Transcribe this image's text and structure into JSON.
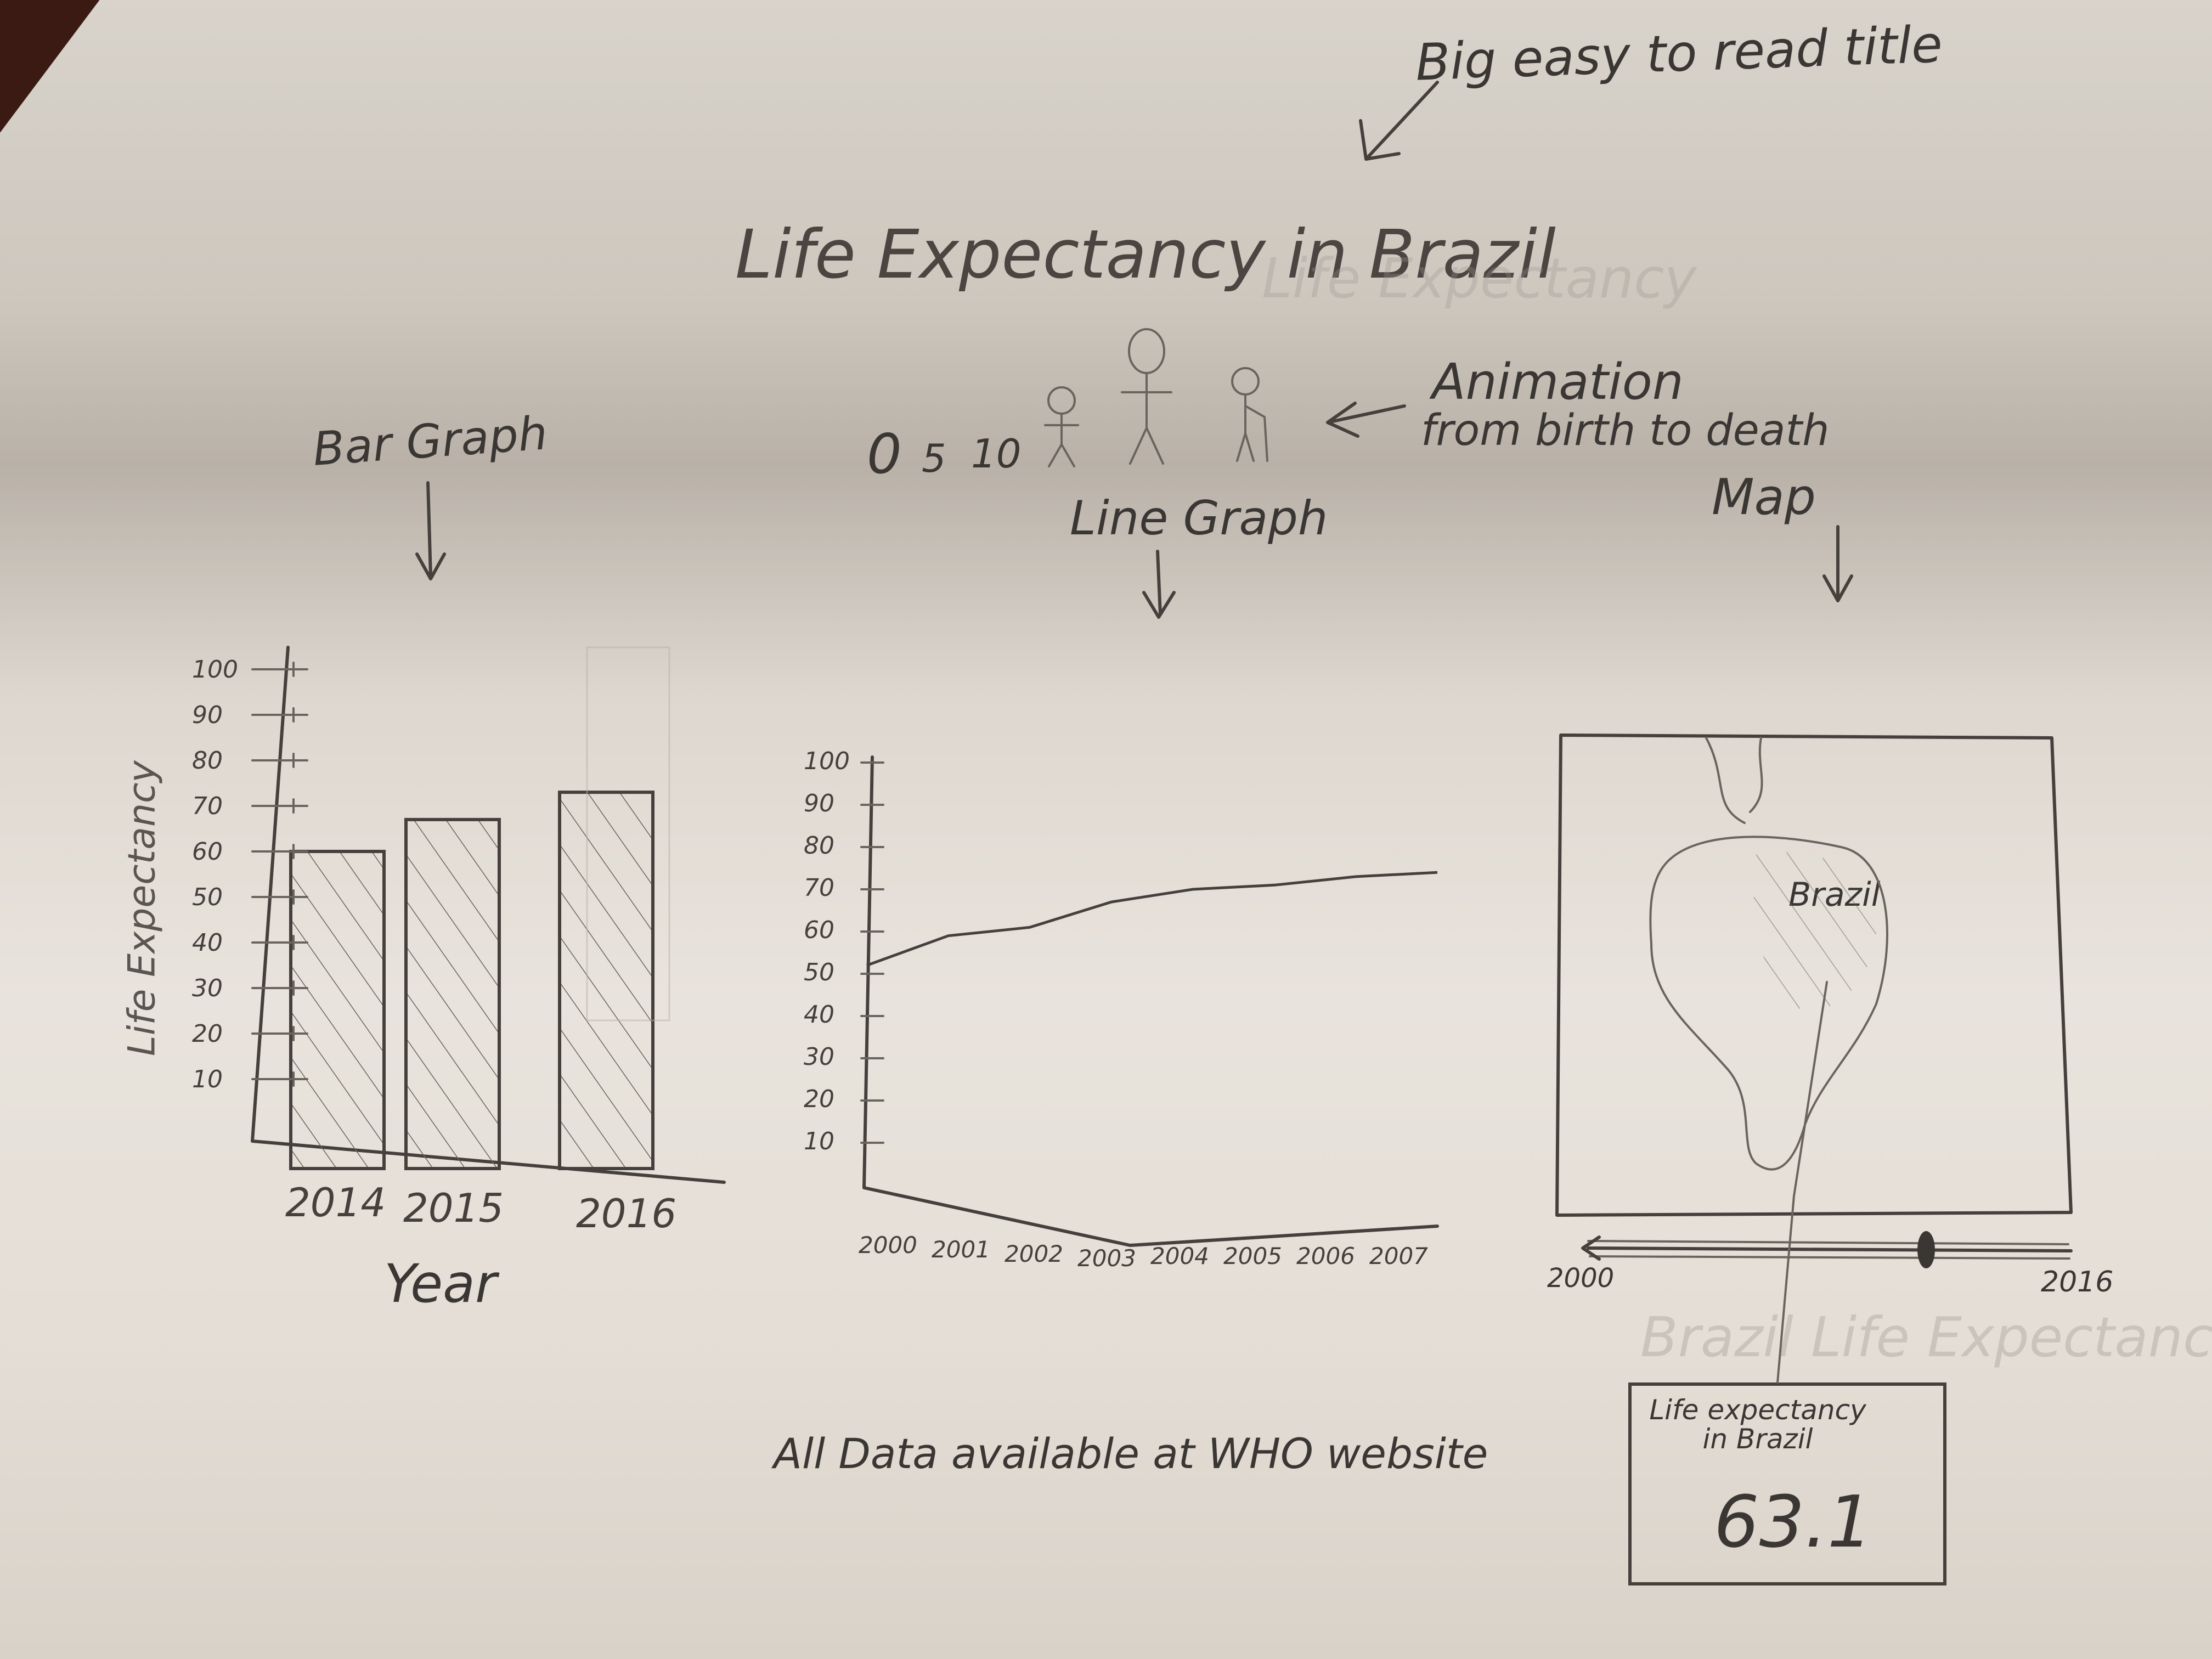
{
  "notes": {
    "title_note": "Big easy to read title",
    "animation_note_line1": "Animation",
    "animation_note_line2": "from birth to death",
    "bar_note": "Bar Graph",
    "line_note": "Line Graph",
    "map_note": "Map",
    "footer": "All Data available at WHO website"
  },
  "sketch": {
    "title": "Life Expectancy in Brazil",
    "ghost_title": "Life Expectancy",
    "ghost_map_title": "Brazil Life Expectancy",
    "age_labels": [
      "0",
      "5",
      "10"
    ]
  },
  "bar_chart": {
    "ylabel": "Life Expectancy",
    "xlabel": "Year",
    "yticks": [
      "100",
      "90",
      "80",
      "70",
      "60",
      "50",
      "40",
      "30",
      "20",
      "10"
    ],
    "categories": [
      "2014",
      "2015",
      "2016"
    ],
    "values": [
      60,
      67,
      73
    ],
    "ylim": [
      0,
      100
    ]
  },
  "line_chart": {
    "yticks": [
      "100",
      "90",
      "80",
      "70",
      "60",
      "50",
      "40",
      "30",
      "20",
      "10"
    ],
    "xticks": [
      "2000",
      "2001",
      "2002",
      "2003",
      "2004",
      "2005",
      "2006",
      "2007"
    ],
    "x": [
      2000,
      2001,
      2002,
      2003,
      2004,
      2005,
      2006,
      2007
    ],
    "values": [
      52,
      59,
      61,
      67,
      70,
      71,
      73,
      74
    ],
    "ylim": [
      0,
      100
    ]
  },
  "map": {
    "region_label": "Brazil",
    "slider_start": "2000",
    "slider_end": "2016",
    "slider_position": 0.7,
    "tooltip_title": "Life expectancy in Brazil",
    "tooltip_value": "63.1"
  }
}
